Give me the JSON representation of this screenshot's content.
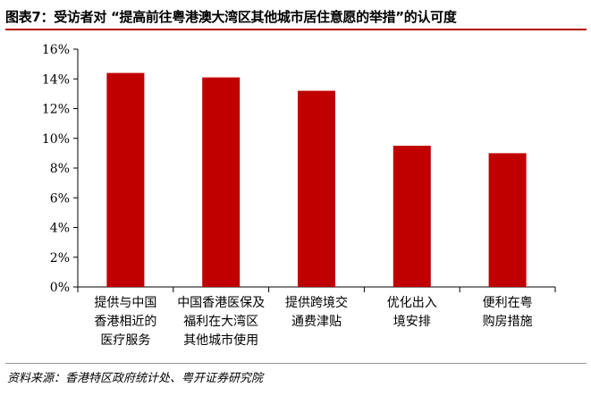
{
  "title": "图表7：受访者对 “提高前往粤港澳大湾区其他城市居住意愿的举措”的认可度",
  "source": "资料来源：香港特区政府统计处、粤开证券研究院",
  "colors": {
    "bar": "#c00000",
    "rule": "#b30000"
  },
  "chart_data": {
    "type": "bar",
    "categories": [
      [
        "提供与中国",
        "香港相近的",
        "医疗服务"
      ],
      [
        "中国香港医保及",
        "福利在大湾区",
        "其他城市使用"
      ],
      [
        "提供跨境交",
        "通费津贴"
      ],
      [
        "优化出入",
        "境安排"
      ],
      [
        "便利在粤",
        "购房措施"
      ]
    ],
    "values": [
      14.4,
      14.1,
      13.2,
      9.5,
      9.0
    ],
    "ylim": [
      0,
      16
    ],
    "yticks": [
      "0%",
      "2%",
      "4%",
      "6%",
      "8%",
      "10%",
      "12%",
      "14%",
      "16%"
    ],
    "grid": false
  }
}
